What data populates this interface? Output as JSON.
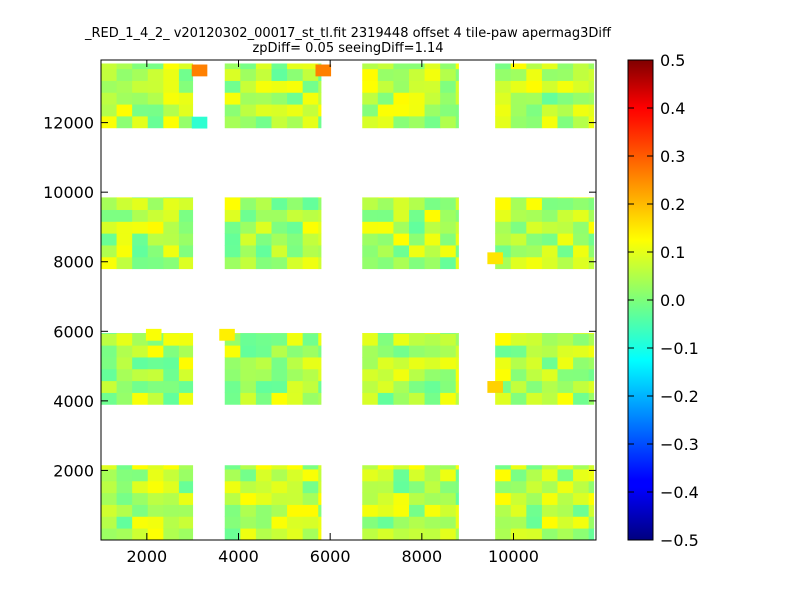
{
  "chart_data": {
    "type": "heatmap",
    "title_line1": "_RED_1_4_2_ v20120302_00017_st_tl.fit 2319448 offset 4 tile-paw apermag3Diff",
    "title_line2": "zpDiff= 0.05 seeingDiff=1.14",
    "xlim": [
      1000,
      11800
    ],
    "ylim": [
      0,
      13800
    ],
    "x_ticks": [
      2000,
      4000,
      6000,
      8000,
      10000
    ],
    "x_tick_labels": [
      "2000",
      "4000",
      "6000",
      "8000",
      "10000"
    ],
    "y_ticks": [
      2000,
      4000,
      6000,
      8000,
      10000,
      12000
    ],
    "y_tick_labels": [
      "2000",
      "4000",
      "6000",
      "8000",
      "10000",
      "12000"
    ],
    "colorbar": {
      "colormap": "jet",
      "vmin": -0.5,
      "vmax": 0.5,
      "ticks": [
        0.5,
        0.4,
        0.3,
        0.2,
        0.1,
        0.0,
        -0.1,
        -0.2,
        -0.3,
        -0.4,
        -0.5
      ],
      "tick_labels": [
        "0.5",
        "0.4",
        "0.3",
        "0.2",
        "0.1",
        "0.0",
        "−0.1",
        "−0.2",
        "−0.3",
        "−0.4",
        "−0.5"
      ]
    },
    "cell_size": 340,
    "row_bands": [
      {
        "name": "top",
        "y_start": 11850,
        "y_end": 13700
      },
      {
        "name": "upper-middle",
        "y_start": 7800,
        "y_end": 9850
      },
      {
        "name": "lower-middle",
        "y_start": 3900,
        "y_end": 5950
      },
      {
        "name": "bottom",
        "y_start": 0,
        "y_end": 2150
      }
    ],
    "column_groups": [
      {
        "x_start": 1000,
        "x_end": 3000
      },
      {
        "x_start": 3700,
        "x_end": 5800
      },
      {
        "x_start": 6700,
        "x_end": 8800
      },
      {
        "x_start": 9600,
        "x_end": 11750
      }
    ],
    "value_range_observed": [
      -0.1,
      0.25
    ],
    "typical_value": 0.05,
    "notable_cells": [
      {
        "x": 3150,
        "y": 13500,
        "value": 0.25
      },
      {
        "x": 5850,
        "y": 13500,
        "value": 0.25
      },
      {
        "x": 3150,
        "y": 12000,
        "value": -0.08
      },
      {
        "x": 9600,
        "y": 8100,
        "value": 0.15
      },
      {
        "x": 9600,
        "y": 4400,
        "value": 0.17
      },
      {
        "x": 3750,
        "y": 5900,
        "value": 0.14
      },
      {
        "x": 2150,
        "y": 5900,
        "value": 0.12
      }
    ]
  }
}
